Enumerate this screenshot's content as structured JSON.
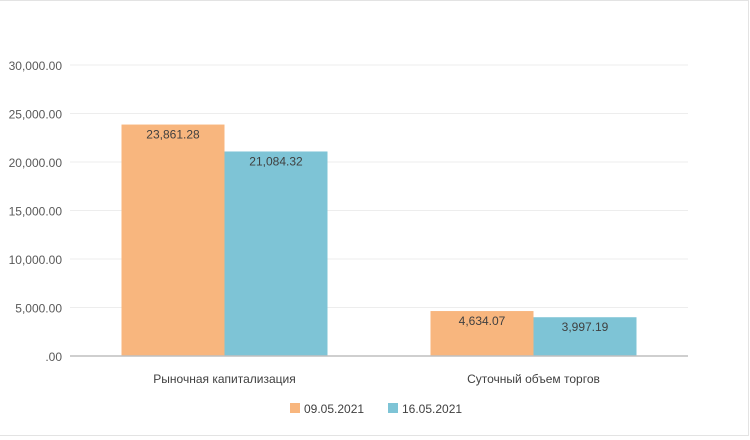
{
  "chart_data": {
    "type": "bar",
    "categories": [
      "Рыночная капитализация",
      "Суточный объем торгов"
    ],
    "series": [
      {
        "name": "09.05.2021",
        "values": [
          23861.28,
          4634.07
        ],
        "color": "#F8B67E"
      },
      {
        "name": "16.05.2021",
        "values": [
          21084.32,
          3997.19
        ],
        "color": "#7EC4D6"
      }
    ],
    "data_labels": [
      [
        "23,861.28",
        "4,634.07"
      ],
      [
        "21,084.32",
        "3,997.19"
      ]
    ],
    "y_ticks": [
      0,
      5000,
      10000,
      15000,
      20000,
      25000,
      30000
    ],
    "y_tick_labels": [
      ".00",
      "5,000.00",
      "10,000.00",
      "15,000.00",
      "20,000.00",
      "25,000.00",
      "30,000.00"
    ],
    "ylim": [
      0,
      30000
    ],
    "title": "",
    "xlabel": "",
    "ylabel": "",
    "grid": true,
    "legend_position": "bottom"
  }
}
